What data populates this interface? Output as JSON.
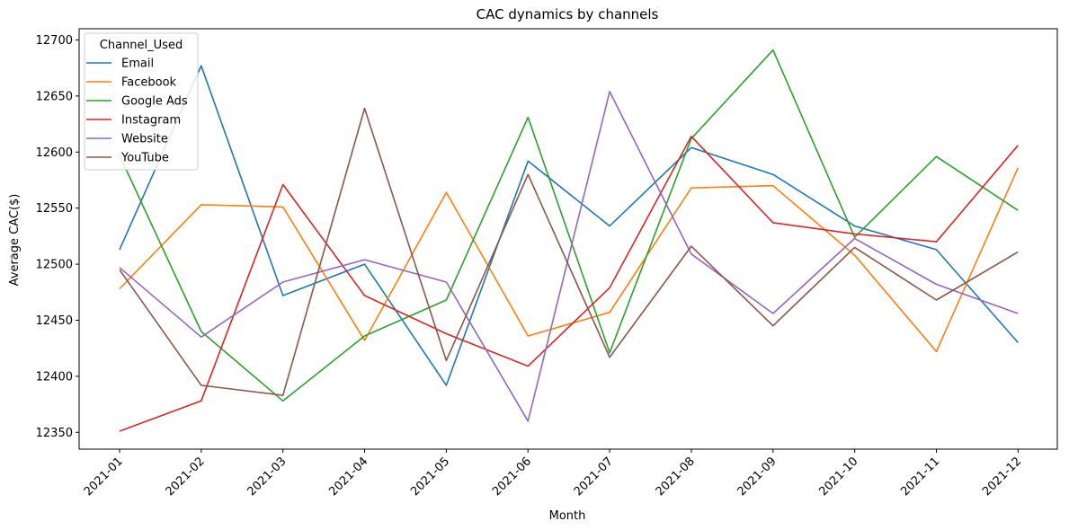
{
  "chart_data": {
    "type": "line",
    "title": "CAC dynamics by channels",
    "xlabel": "Month",
    "ylabel": "Average CAC($)",
    "categories": [
      "2021-01",
      "2021-02",
      "2021-03",
      "2021-04",
      "2021-05",
      "2021-06",
      "2021-07",
      "2021-08",
      "2021-09",
      "2021-10",
      "2021-11",
      "2021-12"
    ],
    "ylim": [
      12335,
      12710
    ],
    "yticks": [
      12350,
      12400,
      12450,
      12500,
      12550,
      12600,
      12650,
      12700
    ],
    "grid": false,
    "legend": {
      "title": "Channel_Used",
      "placement": "top-left"
    },
    "series": [
      {
        "name": "Email",
        "color": "#1f77b4",
        "values": [
          12513,
          12677,
          12472,
          12500,
          12392,
          12592,
          12534,
          12604,
          12580,
          12534,
          12513,
          12430
        ]
      },
      {
        "name": "Facebook",
        "color": "#ff7f0e",
        "values": [
          12478,
          12553,
          12551,
          12432,
          12564,
          12436,
          12457,
          12568,
          12570,
          12508,
          12422,
          12586
        ]
      },
      {
        "name": "Google Ads",
        "color": "#2ca02c",
        "values": [
          12597,
          12440,
          12378,
          12436,
          12468,
          12631,
          12421,
          12612,
          12691,
          12524,
          12596,
          12548
        ]
      },
      {
        "name": "Instagram",
        "color": "#d62728",
        "values": [
          12351,
          12378,
          12571,
          12472,
          12438,
          12409,
          12479,
          12614,
          12537,
          12527,
          12520,
          12606
        ]
      },
      {
        "name": "Website",
        "color": "#9467bd",
        "values": [
          12497,
          12435,
          12484,
          12504,
          12484,
          12360,
          12654,
          12509,
          12456,
          12523,
          12482,
          12456
        ]
      },
      {
        "name": "YouTube",
        "color": "#8c564b",
        "values": [
          12495,
          12392,
          12383,
          12639,
          12414,
          12580,
          12417,
          12516,
          12445,
          12515,
          12468,
          12511
        ]
      }
    ]
  }
}
